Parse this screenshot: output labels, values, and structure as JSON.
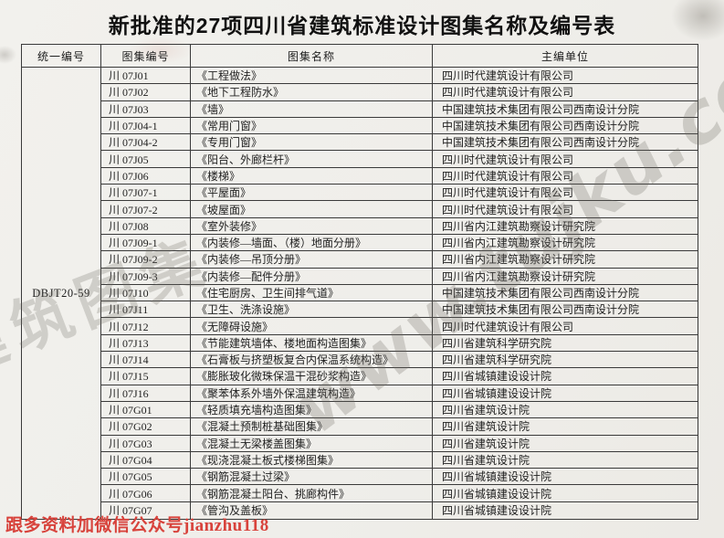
{
  "title": "新批准的27项四川省建筑标准设计图集名称及编号表",
  "table": {
    "headers": {
      "unified": "统一编号",
      "code": "图集编号",
      "name": "图集名称",
      "org": "主编单位"
    },
    "unified_number": "DBJT20-59",
    "rows": [
      {
        "code": "川 07J01",
        "name": "《工程做法》",
        "org": "四川时代建筑设计有限公司"
      },
      {
        "code": "川 07J02",
        "name": "《地下工程防水》",
        "org": "四川时代建筑设计有限公司"
      },
      {
        "code": "川 07J03",
        "name": "《墙》",
        "org": "中国建筑技术集团有限公司西南设计分院"
      },
      {
        "code": "川 07J04-1",
        "name": "《常用门窗》",
        "org": "中国建筑技术集团有限公司西南设计分院"
      },
      {
        "code": "川 07J04-2",
        "name": "《专用门窗》",
        "org": "中国建筑技术集团有限公司西南设计分院"
      },
      {
        "code": "川 07J05",
        "name": "《阳台、外廊栏杆》",
        "org": "四川时代建筑设计有限公司"
      },
      {
        "code": "川 07J06",
        "name": "《楼梯》",
        "org": "四川时代建筑设计有限公司"
      },
      {
        "code": "川 07J07-1",
        "name": "《平屋面》",
        "org": "四川时代建筑设计有限公司"
      },
      {
        "code": "川 07J07-2",
        "name": "《坡屋面》",
        "org": "四川时代建筑设计有限公司"
      },
      {
        "code": "川 07J08",
        "name": "《室外装修》",
        "org": "四川省内江建筑勘察设计研究院"
      },
      {
        "code": "川 07J09-1",
        "name": "《内装修—墙面、（楼）地面分册》",
        "org": "四川省内江建筑勘察设计研究院"
      },
      {
        "code": "川 07J09-2",
        "name": "《内装修—吊顶分册》",
        "org": "四川省内江建筑勘察设计研究院"
      },
      {
        "code": "川 07J09-3",
        "name": "《内装修—配件分册》",
        "org": "四川省内江建筑勘察设计研究院"
      },
      {
        "code": "川 07J10",
        "name": "《住宅厨房、卫生间排气道》",
        "org": "中国建筑技术集团有限公司西南设计分院"
      },
      {
        "code": "川 07J11",
        "name": "《卫生、洗涤设施》",
        "org": "中国建筑技术集团有限公司西南设计分院"
      },
      {
        "code": "川 07J12",
        "name": "《无障碍设施》",
        "org": "四川时代建筑设计有限公司"
      },
      {
        "code": "川 07J13",
        "name": "《节能建筑墙体、楼地面构造图集》",
        "org": "四川省建筑科学研究院"
      },
      {
        "code": "川 07J14",
        "name": "《石膏板与挤塑板复合内保温系统构造》",
        "org": "四川省建筑科学研究院"
      },
      {
        "code": "川 07J15",
        "name": "《膨胀玻化微珠保温干混砂浆构造》",
        "org": "四川省城镇建设设计院"
      },
      {
        "code": "川 07J16",
        "name": "《聚苯体系外墙外保温建筑构造》",
        "org": "四川省城镇建设设计院"
      },
      {
        "code": "川 07G01",
        "name": "《轻质填充墙构造图集》",
        "org": "四川省建筑设计院"
      },
      {
        "code": "川 07G02",
        "name": "《混凝土预制桩基础图集》",
        "org": "四川省建筑设计院"
      },
      {
        "code": "川 07G03",
        "name": "《混凝土无梁楼盖图集》",
        "org": "四川省建筑设计院"
      },
      {
        "code": "川 07G04",
        "name": "《现浇混凝土板式楼梯图集》",
        "org": "四川省建筑设计院"
      },
      {
        "code": "川 07G05",
        "name": "《钢筋混凝土过梁》",
        "org": "四川省城镇建设设计院"
      },
      {
        "code": "川 07G06",
        "name": "《钢筋混凝土阳台、挑廊构件》",
        "org": "四川省城镇建设设计院"
      },
      {
        "code": "川 07G07",
        "name": "《管沟及盖板》",
        "org": "四川省城镇建设设计院"
      }
    ]
  },
  "watermark": {
    "cn_text": "建筑图集",
    "url_text": "www.tujku.com"
  },
  "footer_note": "跟多资料加微信公众号jianzhu118",
  "colors": {
    "paper": "#f0efeb",
    "border": "#3a3a3a",
    "note_red": "#d8433c",
    "watermark_gray": "#6c675f"
  }
}
